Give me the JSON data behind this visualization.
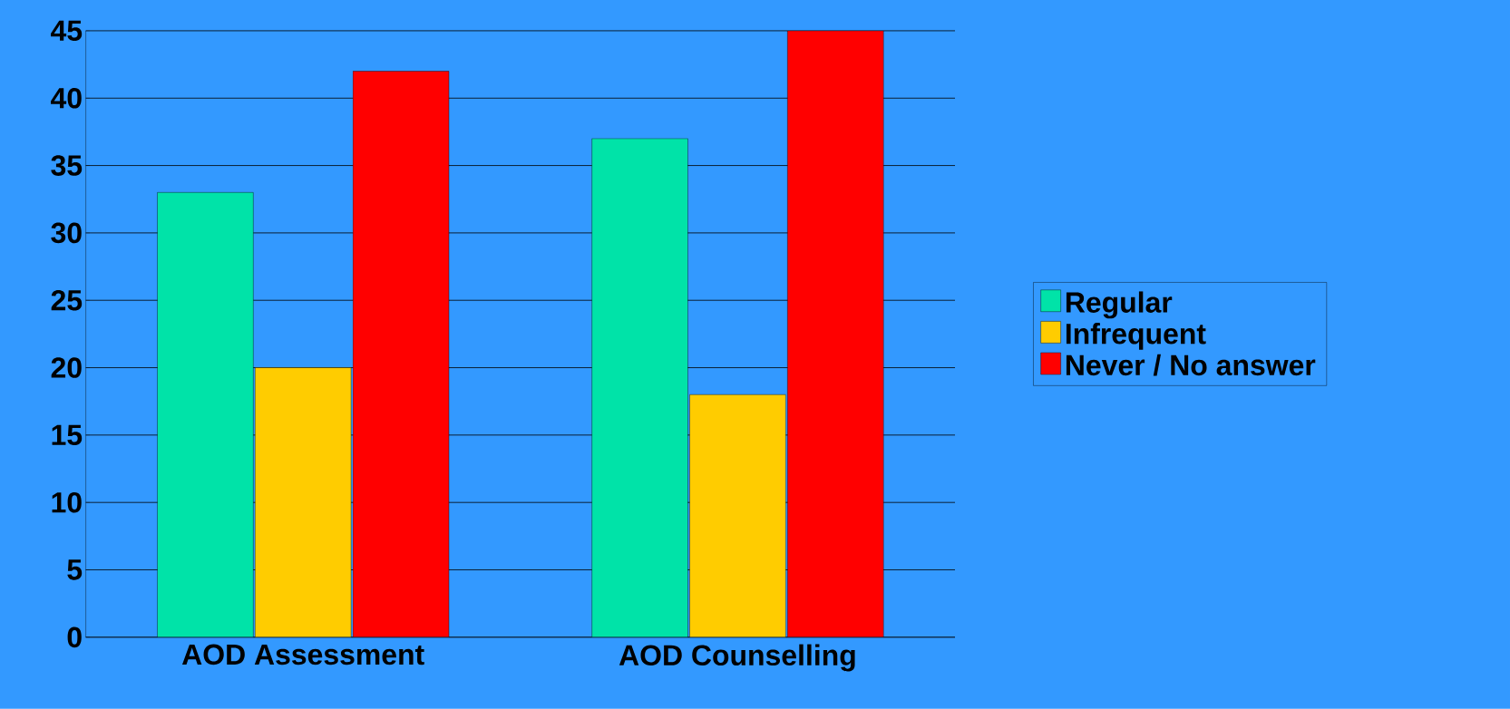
{
  "chart_data": {
    "type": "bar",
    "categories": [
      "AOD Assessment",
      "AOD Counselling"
    ],
    "series": [
      {
        "name": "Regular",
        "color": "#00e3a8",
        "values": [
          33,
          37
        ]
      },
      {
        "name": "Infrequent",
        "color": "#ffcc00",
        "values": [
          20,
          18
        ]
      },
      {
        "name": "Never / No answer",
        "color": "#ff0000",
        "values": [
          42,
          45
        ]
      }
    ],
    "ylim": [
      0,
      45
    ],
    "yticks": [
      0,
      5,
      10,
      15,
      20,
      25,
      30,
      35,
      40,
      45
    ],
    "grid": "y",
    "legend": "right"
  }
}
